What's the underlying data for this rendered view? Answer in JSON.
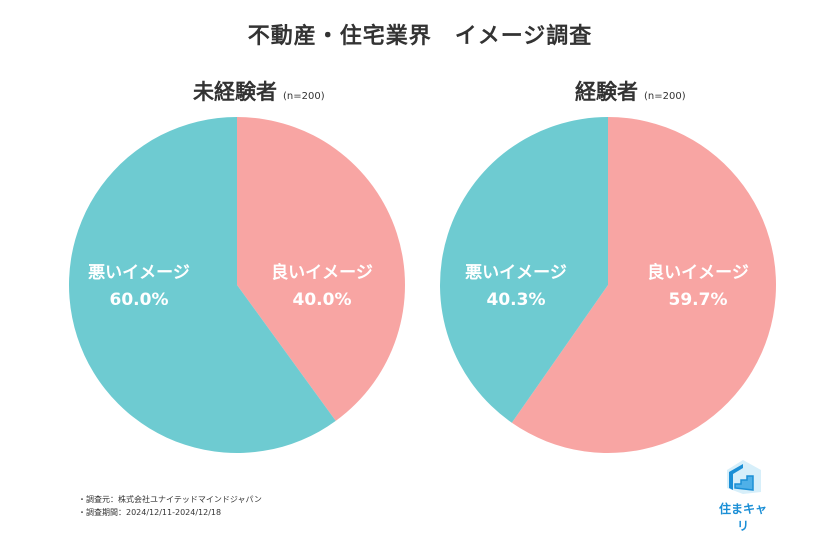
{
  "title": "不動産・住宅業界　イメージ調査",
  "chart_data": [
    {
      "type": "pie",
      "title": "未経験者",
      "note": "(n=200)",
      "start": "top",
      "direction": "clockwise",
      "slices": [
        {
          "label": "良いイメージ",
          "value": 40.0,
          "display": "40.0%",
          "color": "#f8a5a3"
        },
        {
          "label": "悪いイメージ",
          "value": 60.0,
          "display": "60.0%",
          "color": "#6ecbd1"
        }
      ]
    },
    {
      "type": "pie",
      "title": "経験者",
      "note": "(n=200)",
      "start": "top",
      "direction": "clockwise",
      "slices": [
        {
          "label": "良いイメージ",
          "value": 59.7,
          "display": "59.7%",
          "color": "#f8a5a3"
        },
        {
          "label": "悪いイメージ",
          "value": 40.3,
          "display": "40.3%",
          "color": "#6ecbd1"
        }
      ]
    }
  ],
  "footnotes": [
    "・調査元：株式会社ユナイテッドマインドジャパン",
    "・調査期間：2024/12/11-2024/12/18"
  ],
  "logo": {
    "text": "住まキャリ",
    "color": "#1b8fd6"
  }
}
